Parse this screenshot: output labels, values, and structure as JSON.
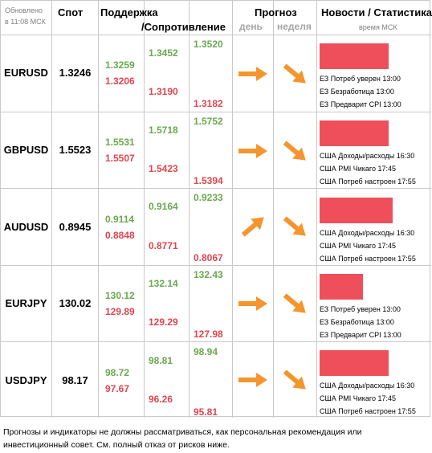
{
  "header": {
    "updated_label": "Обновлено",
    "updated_time": "в 11:08 МСК",
    "spot": "Спот",
    "support": "Поддержка",
    "resistance": "/Сопротивление",
    "forecast": "Прогноз",
    "forecast_day": "день",
    "forecast_week": "неделя",
    "news": "Новости / Статистика",
    "news_sub": "время МСК"
  },
  "colors": {
    "support": "#6aa84f",
    "resistance": "#e0454f",
    "arrow": "#f4952e",
    "news_bar": "#ef4f5a"
  },
  "rows": [
    {
      "pair": "EURUSD",
      "spot": "1.3246",
      "levels": {
        "col1": {
          "g": "1.3259",
          "r": "1.3206"
        },
        "col2": {
          "g": "1.3452",
          "r": "1.3190"
        },
        "col3": {
          "g": "1.3520",
          "r": "1.3182"
        }
      },
      "day": "right",
      "week": "down-right",
      "news_bar_fraction": 0.63,
      "news": [
        "ЕЗ Потреб уверен 13:00",
        "ЕЗ Безработица 13:00",
        "ЕЗ Предварит CPI 13:00"
      ]
    },
    {
      "pair": "GBPUSD",
      "spot": "1.5523",
      "levels": {
        "col1": {
          "g": "1.5531",
          "r": "1.5507"
        },
        "col2": {
          "g": "1.5718",
          "r": "1.5423"
        },
        "col3": {
          "g": "1.5752",
          "r": "1.5394"
        }
      },
      "day": "right",
      "week": "down-right",
      "news_bar_fraction": 0.63,
      "news": [
        "США Доходы/расходы 16:30",
        "США PMI Чикаго 17:45",
        "США Потреб настроен 17:55"
      ]
    },
    {
      "pair": "AUDUSD",
      "spot": "0.8945",
      "levels": {
        "col1": {
          "g": "0.9114",
          "r": "0.8848"
        },
        "col2": {
          "g": "0.9164",
          "r": "0.8771"
        },
        "col3": {
          "g": "0.9233",
          "r": "0.8067"
        }
      },
      "day": "up-right",
      "week": "down-right",
      "news_bar_fraction": 0.67,
      "news": [
        "США Доходы/расходы 16:30",
        "США PMI Чикаго 17:45",
        "США Потреб настроен 17:55"
      ]
    },
    {
      "pair": "EURJPY",
      "spot": "130.02",
      "levels": {
        "col1": {
          "g": "130.12",
          "r": "129.89"
        },
        "col2": {
          "g": "132.14",
          "r": "129.29"
        },
        "col3": {
          "g": "132.43",
          "r": "127.98"
        }
      },
      "day": "right",
      "week": "down-right",
      "news_bar_fraction": 0.4,
      "news": [
        "ЕЗ Потреб уверен 13:00",
        "ЕЗ Безработица 13:00",
        "ЕЗ Предварит CPI 13:00"
      ]
    },
    {
      "pair": "USDJPY",
      "spot": "98.17",
      "levels": {
        "col1": {
          "g": "98.72",
          "r": "97.67"
        },
        "col2": {
          "g": "98.81",
          "r": "96.26"
        },
        "col3": {
          "g": "98.94",
          "r": "95.81"
        }
      },
      "day": "right",
      "week": "down-right",
      "news_bar_fraction": 0.63,
      "news": [
        "США Доходы/расходы 16:30",
        "США PMI Чикаго 17:45",
        "США Потреб настроен 17:55"
      ]
    }
  ],
  "footer": "Прогнозы и индикаторы не должны рассматриваться, как персональная рекомендация или инвестиционный совет. См. полный отказ от рисков ниже."
}
